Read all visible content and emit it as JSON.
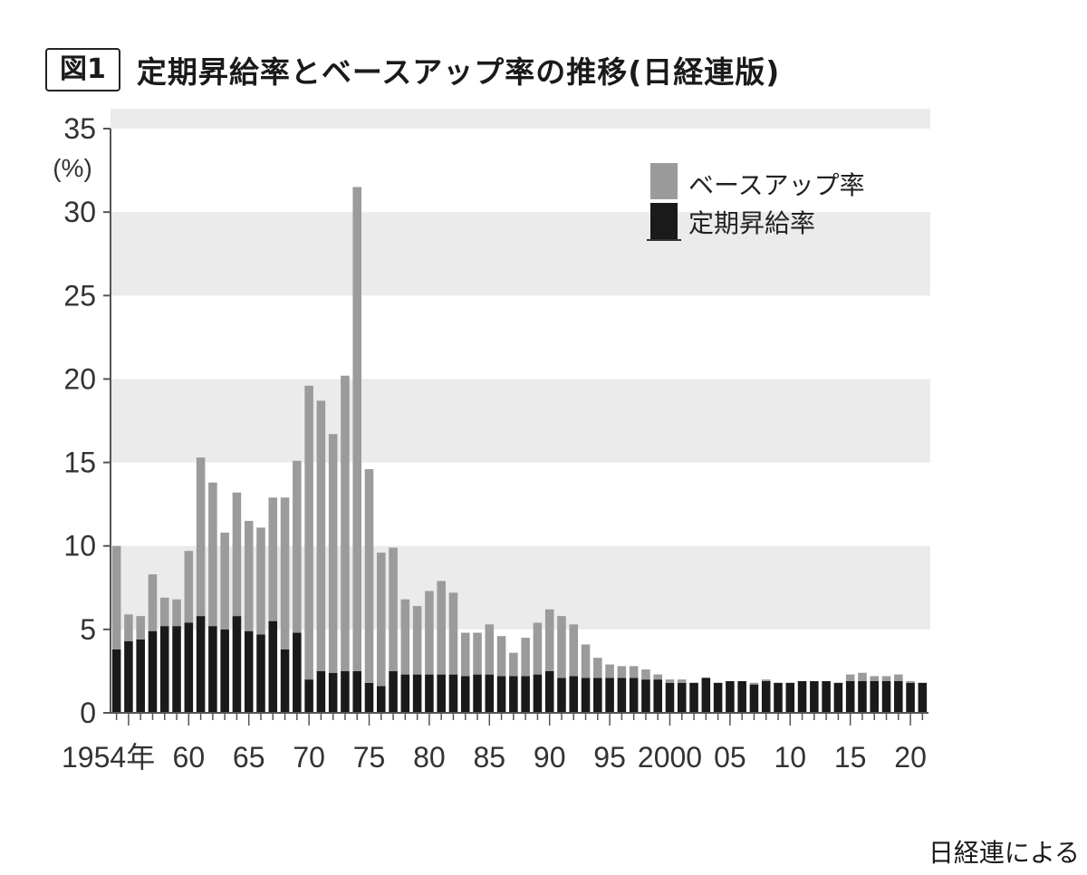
{
  "figure": {
    "badge": "図1",
    "title": "定期昇給率とベースアップ率の推移(日経連版)",
    "source": "日経連による"
  },
  "colors": {
    "base_up": "#9b9b9b",
    "regular_raise": "#1a1a1a",
    "band": "#ebebeb",
    "axis": "#555555"
  },
  "chart_data": {
    "type": "bar",
    "stacked": true,
    "title": "定期昇給率とベースアップ率の推移(日経連版)",
    "ylabel": "(%)",
    "ylim": [
      0,
      35
    ],
    "yticks": [
      0,
      5,
      10,
      15,
      20,
      25,
      30,
      35
    ],
    "grid": "alternating horizontal bands",
    "legend_position": "top-right",
    "x": [
      1954,
      1955,
      1956,
      1957,
      1958,
      1959,
      1960,
      1961,
      1962,
      1963,
      1964,
      1965,
      1966,
      1967,
      1968,
      1969,
      1970,
      1971,
      1972,
      1973,
      1974,
      1975,
      1976,
      1977,
      1978,
      1979,
      1980,
      1981,
      1982,
      1983,
      1984,
      1985,
      1986,
      1987,
      1988,
      1989,
      1990,
      1991,
      1992,
      1993,
      1994,
      1995,
      1996,
      1997,
      1998,
      1999,
      2000,
      2001,
      2002,
      2003,
      2004,
      2005,
      2006,
      2007,
      2008,
      2009,
      2010,
      2011,
      2012,
      2013,
      2014,
      2015,
      2016,
      2017,
      2018,
      2019,
      2020,
      2021
    ],
    "x_tick_labels": [
      {
        "year": 1954,
        "label": "1954年"
      },
      {
        "year": 1960,
        "label": "60"
      },
      {
        "year": 1965,
        "label": "65"
      },
      {
        "year": 1970,
        "label": "70"
      },
      {
        "year": 1975,
        "label": "75"
      },
      {
        "year": 1980,
        "label": "80"
      },
      {
        "year": 1985,
        "label": "85"
      },
      {
        "year": 1990,
        "label": "90"
      },
      {
        "year": 1995,
        "label": "95"
      },
      {
        "year": 2000,
        "label": "2000"
      },
      {
        "year": 2005,
        "label": "05"
      },
      {
        "year": 2010,
        "label": "10"
      },
      {
        "year": 2015,
        "label": "15"
      },
      {
        "year": 2020,
        "label": "20"
      }
    ],
    "series": [
      {
        "name": "定期昇給率",
        "values": [
          3.8,
          4.3,
          4.4,
          4.9,
          5.2,
          5.2,
          5.4,
          5.8,
          5.2,
          5.0,
          5.8,
          4.9,
          4.7,
          5.5,
          3.8,
          4.8,
          2.0,
          2.5,
          2.4,
          2.5,
          2.5,
          1.8,
          1.6,
          2.5,
          2.3,
          2.3,
          2.3,
          2.3,
          2.3,
          2.2,
          2.3,
          2.3,
          2.2,
          2.2,
          2.2,
          2.3,
          2.5,
          2.1,
          2.2,
          2.1,
          2.1,
          2.1,
          2.1,
          2.1,
          2.0,
          2.0,
          1.8,
          1.8,
          1.8,
          2.1,
          1.8,
          1.9,
          1.9,
          1.7,
          1.9,
          1.8,
          1.8,
          1.9,
          1.9,
          1.9,
          1.8,
          1.9,
          1.9,
          1.9,
          1.9,
          1.9,
          1.8,
          1.8
        ]
      },
      {
        "name": "ベースアップ率",
        "values": [
          6.2,
          1.6,
          1.4,
          3.4,
          1.7,
          1.6,
          4.3,
          9.5,
          8.6,
          5.8,
          7.4,
          6.6,
          6.4,
          7.4,
          9.1,
          10.3,
          17.6,
          16.2,
          14.3,
          17.7,
          29.0,
          12.8,
          8.0,
          7.4,
          4.5,
          4.1,
          5.0,
          5.6,
          4.9,
          2.6,
          2.5,
          3.0,
          2.4,
          1.4,
          2.3,
          3.1,
          3.7,
          3.7,
          3.1,
          2.0,
          1.2,
          0.8,
          0.7,
          0.7,
          0.6,
          0.3,
          0.2,
          0.2,
          0.0,
          0.0,
          0.0,
          0.0,
          0.0,
          0.1,
          0.1,
          0.0,
          0.0,
          0.0,
          0.0,
          0.0,
          0.0,
          0.4,
          0.5,
          0.3,
          0.3,
          0.4,
          0.1,
          0.0
        ]
      }
    ]
  }
}
